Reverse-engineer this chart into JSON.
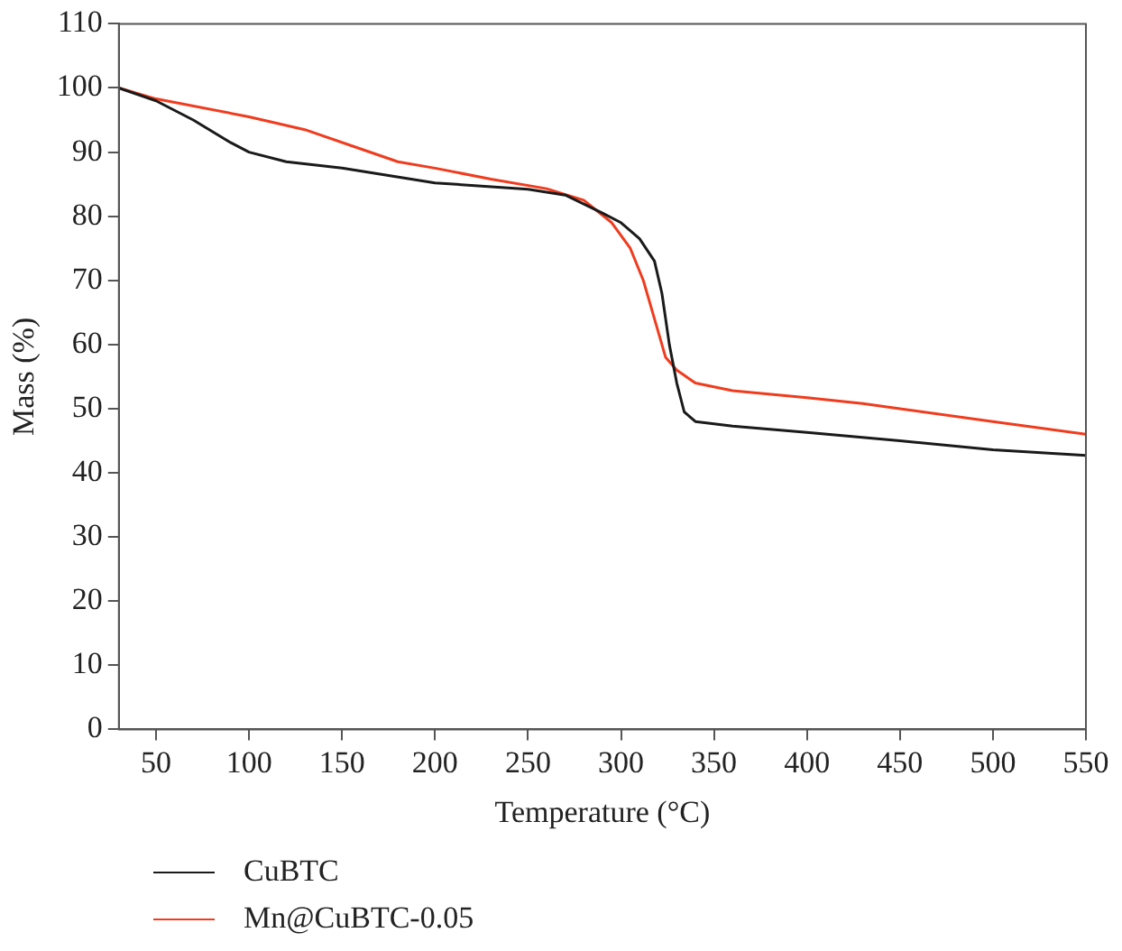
{
  "chart_data": {
    "type": "line",
    "xlabel": "Temperature (°C)",
    "ylabel": "Mass (%)",
    "xlim": [
      30,
      550
    ],
    "xticks": [
      50,
      100,
      150,
      200,
      250,
      300,
      350,
      400,
      450,
      500,
      550
    ],
    "ylim": [
      0,
      110
    ],
    "yticks": [
      0,
      10,
      20,
      30,
      40,
      50,
      60,
      70,
      80,
      90,
      100,
      110
    ],
    "grid": false,
    "legend": "bottom left",
    "marker": "none",
    "line_style": "solid",
    "series": [
      {
        "name": "CuBTC",
        "color": "#1a1a1a",
        "x": [
          30,
          50,
          70,
          90,
          100,
          120,
          150,
          200,
          250,
          270,
          290,
          300,
          310,
          318,
          322,
          326,
          330,
          334,
          340,
          360,
          400,
          450,
          500,
          550
        ],
        "values": [
          100,
          98,
          95,
          91.5,
          90,
          88.5,
          87.5,
          85.2,
          84.2,
          83.3,
          80.5,
          79,
          76.5,
          73,
          68,
          60,
          54,
          49.5,
          48,
          47.3,
          46.3,
          45,
          43.6,
          42.7
        ]
      },
      {
        "name": "Mn@CuBTC-0.05",
        "color": "#f03c1e",
        "x": [
          30,
          50,
          100,
          130,
          160,
          180,
          200,
          230,
          260,
          280,
          295,
          305,
          312,
          318,
          324,
          330,
          340,
          360,
          400,
          430,
          450,
          500,
          550
        ],
        "values": [
          100,
          98.3,
          95.5,
          93.5,
          90.5,
          88.5,
          87.5,
          85.8,
          84.3,
          82.5,
          79,
          75,
          70,
          64,
          58,
          56,
          54,
          52.8,
          51.7,
          50.8,
          50,
          48,
          46
        ]
      }
    ]
  }
}
